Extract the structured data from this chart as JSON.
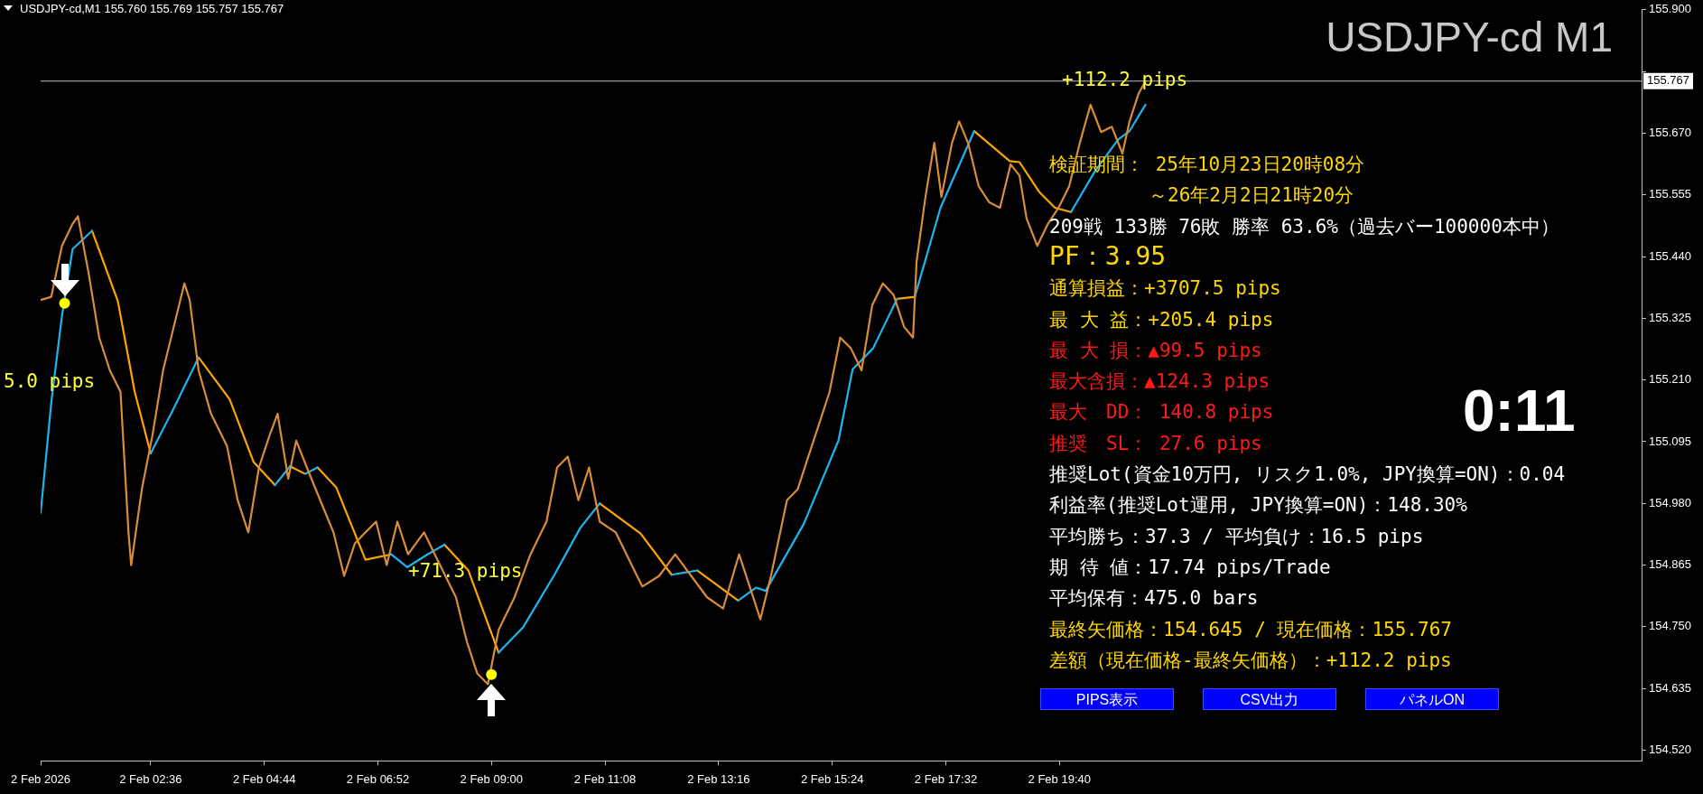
{
  "chart_data": {
    "type": "line",
    "title": "USDJPY-cd M1",
    "subtitle": "USDJPY-cd,M1  155.760 155.769 155.757 155.767",
    "xlim": [
      "2026-02-02T00:32",
      "2026-02-03T06:36"
    ],
    "xticks": [
      {
        "value": "2026-02-02T00:32",
        "label": "2 Feb 2026"
      },
      {
        "value": "2026-02-02T02:36",
        "label": "2 Feb 02:36"
      },
      {
        "value": "2026-02-02T04:44",
        "label": "2 Feb 04:44"
      },
      {
        "value": "2026-02-02T06:52",
        "label": "2 Feb 06:52"
      },
      {
        "value": "2026-02-02T09:00",
        "label": "2 Feb 09:00"
      },
      {
        "value": "2026-02-02T11:08",
        "label": "2 Feb 11:08"
      },
      {
        "value": "2026-02-02T13:16",
        "label": "2 Feb 13:16"
      },
      {
        "value": "2026-02-02T15:24",
        "label": "2 Feb 15:24"
      },
      {
        "value": "2026-02-02T17:32",
        "label": "2 Feb 17:32"
      },
      {
        "value": "2026-02-02T19:40",
        "label": "2 Feb 19:40"
      }
    ],
    "ylim": [
      154.5,
      155.9
    ],
    "yticks": [
      {
        "value": 154.52,
        "label": "154.520"
      },
      {
        "value": 154.635,
        "label": "154.635"
      },
      {
        "value": 154.75,
        "label": "154.750"
      },
      {
        "value": 154.865,
        "label": "154.865"
      },
      {
        "value": 154.98,
        "label": "154.980"
      },
      {
        "value": 155.095,
        "label": "155.095"
      },
      {
        "value": 155.21,
        "label": "155.210"
      },
      {
        "value": 155.325,
        "label": "155.325"
      },
      {
        "value": 155.44,
        "label": "155.440"
      },
      {
        "value": 155.555,
        "label": "155.555"
      },
      {
        "value": 155.67,
        "label": "155.670"
      },
      {
        "value": 155.785,
        "label": null
      },
      {
        "value": 155.9,
        "label": "155.900"
      }
    ],
    "grid": false,
    "legend": false,
    "line_style": "solid",
    "marker": "none",
    "ref_lines": [
      {
        "axis": "y",
        "value": 155.767,
        "label": "155.767",
        "color": "#c0c0c0"
      }
    ],
    "series": [
      {
        "type": "line",
        "color": "#d98c3a",
        "x": [
          "2026-02-02T00:32",
          "2026-02-02T00:44",
          "2026-02-02T00:56",
          "2026-02-02T01:08",
          "2026-02-02T01:14",
          "2026-02-02T01:26",
          "2026-02-02T01:38",
          "2026-02-02T01:50",
          "2026-02-02T02:02",
          "2026-02-02T02:11",
          "2026-02-02T02:14",
          "2026-02-02T02:26",
          "2026-02-02T02:38",
          "2026-02-02T02:50",
          "2026-02-02T03:02",
          "2026-02-02T03:14",
          "2026-02-02T03:20",
          "2026-02-02T03:30",
          "2026-02-02T03:44",
          "2026-02-02T04:02",
          "2026-02-02T04:14",
          "2026-02-02T04:26",
          "2026-02-02T04:38",
          "2026-02-02T04:50",
          "2026-02-02T04:59",
          "2026-02-02T05:11",
          "2026-02-02T05:20",
          "2026-02-02T05:32",
          "2026-02-02T05:47",
          "2026-02-02T06:02",
          "2026-02-02T06:14",
          "2026-02-02T06:26",
          "2026-02-02T06:38",
          "2026-02-02T06:50",
          "2026-02-02T07:02",
          "2026-02-02T07:14",
          "2026-02-02T07:26",
          "2026-02-02T07:44",
          "2026-02-02T08:02",
          "2026-02-02T08:20",
          "2026-02-02T08:32",
          "2026-02-02T08:44",
          "2026-02-02T08:56",
          "2026-02-02T09:08",
          "2026-02-02T09:26",
          "2026-02-02T09:44",
          "2026-02-02T10:02",
          "2026-02-02T10:14",
          "2026-02-02T10:26",
          "2026-02-02T10:38",
          "2026-02-02T10:50",
          "2026-02-02T11:02",
          "2026-02-02T11:20",
          "2026-02-02T11:38",
          "2026-02-02T11:50",
          "2026-02-02T12:09",
          "2026-02-02T12:27",
          "2026-02-02T12:45",
          "2026-02-02T13:03",
          "2026-02-02T13:21",
          "2026-02-02T13:39",
          "2026-02-02T13:51",
          "2026-02-02T14:03",
          "2026-02-02T14:15",
          "2026-02-02T14:33",
          "2026-02-02T14:45",
          "2026-02-02T14:57",
          "2026-02-02T15:09",
          "2026-02-02T15:21",
          "2026-02-02T15:33",
          "2026-02-02T15:45",
          "2026-02-02T15:57",
          "2026-02-02T16:09",
          "2026-02-02T16:21",
          "2026-02-02T16:33",
          "2026-02-02T16:45",
          "2026-02-02T16:55",
          "2026-02-02T16:59",
          "2026-02-02T17:09",
          "2026-02-02T17:19",
          "2026-02-02T17:27",
          "2026-02-02T17:39",
          "2026-02-02T17:47",
          "2026-02-02T17:57",
          "2026-02-02T18:09",
          "2026-02-02T18:21",
          "2026-02-02T18:33",
          "2026-02-02T18:45",
          "2026-02-02T18:55",
          "2026-02-02T19:03",
          "2026-02-02T19:15",
          "2026-02-02T19:27",
          "2026-02-02T19:39",
          "2026-02-02T19:51",
          "2026-02-02T20:03",
          "2026-02-02T20:15",
          "2026-02-02T20:27",
          "2026-02-02T20:39",
          "2026-02-02T20:51",
          "2026-02-02T20:59",
          "2026-02-02T21:09",
          "2026-02-02T21:17"
        ],
        "values": [
          155.359,
          155.365,
          155.46,
          155.501,
          155.515,
          155.41,
          155.289,
          155.228,
          155.188,
          154.926,
          154.865,
          155.006,
          155.107,
          155.228,
          155.309,
          155.39,
          155.359,
          155.228,
          155.147,
          155.087,
          154.986,
          154.926,
          155.047,
          155.107,
          155.147,
          155.026,
          155.097,
          155.047,
          154.986,
          154.926,
          154.845,
          154.905,
          154.926,
          154.946,
          154.865,
          154.946,
          154.885,
          154.926,
          154.865,
          154.805,
          154.724,
          154.663,
          154.643,
          154.744,
          154.805,
          154.885,
          154.946,
          155.047,
          155.067,
          154.986,
          155.047,
          154.946,
          154.926,
          154.865,
          154.825,
          154.845,
          154.885,
          154.845,
          154.805,
          154.784,
          154.885,
          154.825,
          154.764,
          154.845,
          154.986,
          155.006,
          155.067,
          155.127,
          155.188,
          155.289,
          155.269,
          155.228,
          155.349,
          155.39,
          155.369,
          155.309,
          155.289,
          155.43,
          155.551,
          155.652,
          155.551,
          155.652,
          155.692,
          155.652,
          155.571,
          155.541,
          155.531,
          155.612,
          155.591,
          155.511,
          155.46,
          155.501,
          155.531,
          155.571,
          155.652,
          155.723,
          155.672,
          155.682,
          155.632,
          155.692,
          155.743,
          155.767
        ]
      },
      {
        "type": "line",
        "color": "#1eb4ee",
        "x": [
          "2026-02-02T00:32",
          "2026-02-02T00:44",
          "2026-02-02T00:56",
          "2026-02-02T01:08",
          "2026-02-02T01:30",
          "2026-02-02T01:48",
          "2026-02-02T02:36",
          "2026-02-02T03:01",
          "2026-02-02T03:30",
          "2026-02-02T04:00",
          "2026-02-02T04:56",
          "2026-02-02T05:13",
          "2026-02-02T05:18",
          "2026-02-02T05:30",
          "2026-02-02T05:44",
          "2026-02-02T06:30",
          "2026-02-02T07:07",
          "2026-02-02T07:25",
          "2026-02-02T07:48",
          "2026-02-02T08:07",
          "2026-02-02T08:30",
          "2026-02-02T09:08",
          "2026-02-02T09:36",
          "2026-02-02T10:11",
          "2026-02-02T10:40",
          "2026-02-02T11:02",
          "2026-02-02T11:30",
          "2026-02-02T12:23",
          "2026-02-02T12:52",
          "2026-02-02T13:12",
          "2026-02-02T13:38",
          "2026-02-02T13:58",
          "2026-02-02T14:09",
          "2026-02-02T14:52",
          "2026-02-02T15:31",
          "2026-02-02T15:47",
          "2026-02-02T16:10",
          "2026-02-02T16:37",
          "2026-02-02T16:48",
          "2026-02-02T16:57",
          "2026-02-02T17:26",
          "2026-02-02T18:04",
          "2026-02-02T19:00",
          "2026-02-02T19:53",
          "2026-02-02T20:20",
          "2026-02-02T20:46",
          "2026-02-02T20:59",
          "2026-02-02T21:17"
        ],
        "values": [
          154.962,
          155.168,
          155.329,
          155.454,
          155.488,
          null,
          155.073,
          155.154,
          155.252,
          null,
          155.014,
          155.049,
          null,
          155.035,
          155.047,
          null,
          154.885,
          154.861,
          154.885,
          154.903,
          null,
          154.702,
          154.75,
          154.847,
          154.934,
          154.98,
          null,
          154.847,
          154.855,
          null,
          154.799,
          154.823,
          154.817,
          154.942,
          155.097,
          155.23,
          155.269,
          155.361,
          null,
          155.365,
          155.531,
          155.674,
          null,
          155.523,
          155.599,
          155.658,
          155.674,
          155.723
        ]
      },
      {
        "type": "line",
        "color": "#ffa500",
        "x": [
          "2026-02-02T01:30",
          "2026-02-02T01:59",
          "2026-02-02T02:18",
          "2026-02-02T02:36",
          "2026-02-02T03:00",
          "2026-02-02T03:30",
          "2026-02-02T04:05",
          "2026-02-02T04:32",
          "2026-02-02T04:56",
          "2026-02-02T05:06",
          "2026-02-02T05:13",
          "2026-02-02T05:30",
          "2026-02-02T05:36",
          "2026-02-02T05:44",
          "2026-02-02T06:05",
          "2026-02-02T06:38",
          "2026-02-02T07:07",
          "2026-02-02T07:36",
          "2026-02-02T08:07",
          "2026-02-02T08:34",
          "2026-02-02T09:08",
          "2026-02-02T10:00",
          "2026-02-02T11:02",
          "2026-02-02T11:48",
          "2026-02-02T12:23",
          "2026-02-02T12:36",
          "2026-02-02T12:52",
          "2026-02-02T13:38",
          "2026-02-02T15:00",
          "2026-02-02T16:37",
          "2026-02-02T16:57",
          "2026-02-02T17:30",
          "2026-02-02T18:04",
          "2026-02-02T18:44",
          "2026-02-02T18:55",
          "2026-02-02T19:17",
          "2026-02-02T19:35",
          "2026-02-02T19:53"
        ],
        "values": [
          155.488,
          155.357,
          155.188,
          155.073,
          null,
          155.252,
          155.174,
          155.057,
          155.014,
          null,
          155.049,
          155.035,
          null,
          155.047,
          155.01,
          154.875,
          154.885,
          null,
          154.903,
          154.855,
          154.702,
          null,
          154.98,
          154.924,
          154.847,
          null,
          154.855,
          154.799,
          null,
          155.361,
          155.365,
          null,
          155.674,
          155.618,
          155.616,
          155.561,
          155.531,
          155.523
        ]
      },
      {
        "type": "scatter",
        "color": "#ffff00",
        "marker": "circle",
        "x": [
          "2026-02-02T00:59",
          "2026-02-02T09:00"
        ],
        "values": [
          155.353,
          154.661
        ]
      }
    ],
    "annotations": [
      "+112.2 pips",
      "+71.3 pips",
      "5.0 pips",
      "検証期間： 25年10月23日20時08分",
      "～26年2月2日21時20分",
      "209戦 133勝 76敗 勝率 63.6%（過去バー100000本中）",
      "PF：3.95",
      "通算損益：+3707.5 pips",
      "最 大 益：+205.4 pips",
      "最 大 損：▲99.5 pips",
      "最大含損：▲124.3 pips",
      "最大　DD： 140.8 pips",
      "推奨　SL： 27.6 pips",
      "推奨Lot(資金10万円, リスク1.0%, JPY換算=ON)：0.04",
      "利益率(推奨Lot運用, JPY換算=ON)：148.30%",
      "平均勝ち：37.3 / 平均負け：16.5 pips",
      "期 待 値：17.74 pips/Trade",
      "平均保有：475.0 bars",
      "最終矢価格：154.645 / 現在価格：155.767",
      "差額（現在価格-最終矢価格）：+112.2 pips",
      "0:11",
      "PIPS表示",
      "CSV出力",
      "パネルON"
    ]
  }
}
